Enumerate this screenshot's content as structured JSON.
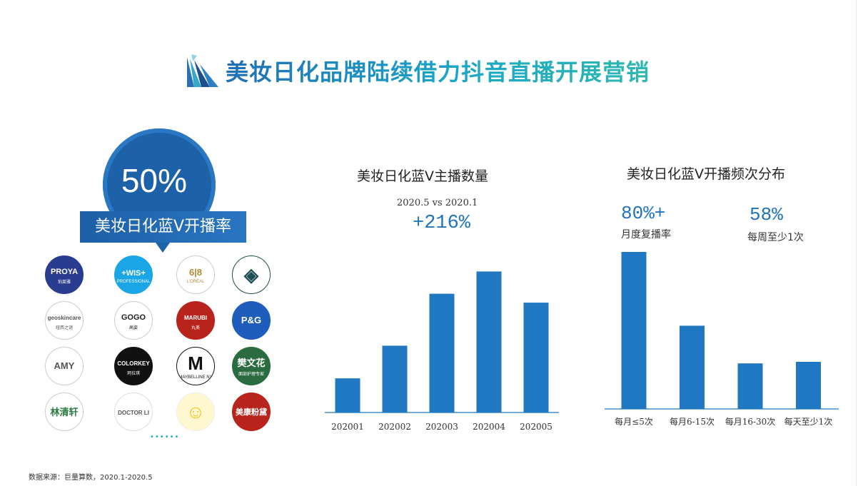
{
  "title": "美妆日化品牌陆续借力抖音直播开展营销",
  "left": {
    "stat": "50%",
    "stat_label": "美妆日化蓝V开播率",
    "brands": [
      {
        "name": "PROYA",
        "sub": "珀莱雅",
        "bg": "#2a3c8f",
        "fg": "#ffffff",
        "border": "#2a3c8f"
      },
      {
        "name": "+WIS+",
        "sub": "PROFESSIONAL",
        "bg": "#1aa6e6",
        "fg": "#ffffff",
        "border": "#1aa6e6"
      },
      {
        "name": "6|8",
        "sub": "L'ORÉAL",
        "bg": "#ffffff",
        "fg": "#b08a3c",
        "border": "#cccccc"
      },
      {
        "name": "◈",
        "sub": "",
        "bg": "#ffffff",
        "fg": "#1f4f52",
        "border": "#1f4f52"
      },
      {
        "name": "geoskincare",
        "sub": "纽西之谜",
        "bg": "#ffffff",
        "fg": "#555555",
        "border": "#cccccc"
      },
      {
        "name": "GOGO",
        "sub": "高姿",
        "bg": "#ffffff",
        "fg": "#222222",
        "border": "#cccccc"
      },
      {
        "name": "MARUBI",
        "sub": "丸美",
        "bg": "#b8231c",
        "fg": "#ffffff",
        "border": "#b8231c"
      },
      {
        "name": "P&G",
        "sub": "",
        "bg": "#1e5dbb",
        "fg": "#ffffff",
        "border": "#1e5dbb"
      },
      {
        "name": "AMY",
        "sub": "",
        "bg": "#ffffff",
        "fg": "#555555",
        "border": "#cccccc"
      },
      {
        "name": "COLORKEY",
        "sub": "珂拉琪",
        "bg": "#111111",
        "fg": "#ffffff",
        "border": "#111111"
      },
      {
        "name": "M",
        "sub": "MAYBELLINE NY",
        "bg": "#ffffff",
        "fg": "#111111",
        "border": "#111111"
      },
      {
        "name": "樊文花",
        "sub": "面部护理专家",
        "bg": "#2a6b3f",
        "fg": "#ffffff",
        "border": "#2a6b3f"
      },
      {
        "name": "林清轩",
        "sub": "",
        "bg": "#ffffff",
        "fg": "#2c7a43",
        "border": "#cccccc"
      },
      {
        "name": "DOCTOR LI",
        "sub": "",
        "bg": "#ffffff",
        "fg": "#555555",
        "border": "#dddddd"
      },
      {
        "name": "☺",
        "sub": "",
        "bg": "#fff7cf",
        "fg": "#f0c419",
        "border": "#eeeeee"
      },
      {
        "name": "美康粉黛",
        "sub": "",
        "bg": "#b8231c",
        "fg": "#ffffff",
        "border": "#b8231c"
      }
    ],
    "more": "••••••"
  },
  "chart1": {
    "title": "美妆日化蓝V主播数量",
    "compare": "2020.5  vs 2020.1",
    "growth": "+216%"
  },
  "chart2": {
    "title": "美妆日化蓝V开播频次分布",
    "stat1": "80%+",
    "stat1_caption": "月度复播率",
    "stat2": "58%",
    "stat2_caption": "每周至少1次"
  },
  "footer": "数据来源：巨量算数，2020.1-2020.5",
  "colors": {
    "bar": "#1f78c1",
    "title_start": "#1f6fb5",
    "title_end": "#2fb8b0",
    "accent": "#1e73be"
  },
  "chart_data": [
    {
      "type": "bar",
      "title": "美妆日化蓝V主播数量",
      "categories": [
        "202001",
        "202002",
        "202003",
        "202004",
        "202005"
      ],
      "values": [
        23,
        45,
        80,
        95,
        74
      ],
      "ylim": [
        0,
        100
      ],
      "xlabel": "",
      "ylabel": "",
      "grid": false,
      "show_y_axis": false
    },
    {
      "type": "bar",
      "title": "美妆日化蓝V开播频次分布",
      "categories": [
        "每月≤5次",
        "每月6-15次",
        "每月16-30次",
        "每天至少1次"
      ],
      "values": [
        100,
        53,
        29,
        30
      ],
      "ylim": [
        0,
        100
      ],
      "xlabel": "",
      "ylabel": "",
      "grid": false,
      "show_y_axis": false
    }
  ]
}
